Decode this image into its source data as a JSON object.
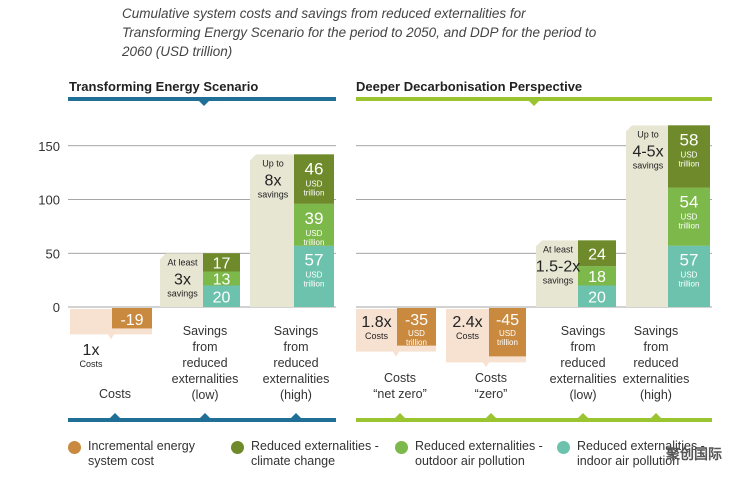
{
  "caption": "Cumulative system costs and savings from reduced externalities for Transforming Energy Scenario for the period to 2050, and DDP for the period to 2060 (USD trillion)",
  "watermark": "聚创国际",
  "colors": {
    "cost": "#c98a3f",
    "climate": "#6e8a2a",
    "outdoor": "#7db84a",
    "indoor": "#6cc2ad",
    "tes_bar": "#1f6f96",
    "ddp_bar": "#9ac430",
    "cost_bg": "#f7e2d2",
    "savings_bg": "#e7e6d3",
    "grid": "#888888"
  },
  "chart_data": {
    "type": "bar",
    "title": "Cumulative system costs and savings from reduced externalities (USD trillion)",
    "ylim": [
      -45,
      160
    ],
    "yticks": [
      0,
      50,
      100,
      150
    ],
    "panels": [
      {
        "name": "Transforming Energy Scenario",
        "color": "tes_bar",
        "groups": [
          {
            "label": [
              "Costs"
            ],
            "kind": "cost",
            "total": -19,
            "multiplier": "1x",
            "mult_sub": "Costs",
            "segments": [
              {
                "series": "cost",
                "value": -19,
                "label": "-19"
              }
            ]
          },
          {
            "label": [
              "Savings",
              "from",
              "reduced",
              "externalities",
              "(low)"
            ],
            "kind": "savings",
            "total": 50,
            "callout": [
              "At least",
              "3x",
              "savings"
            ],
            "segments": [
              {
                "series": "indoor",
                "value": 20,
                "label": "20"
              },
              {
                "series": "outdoor",
                "value": 13,
                "label": "13"
              },
              {
                "series": "climate",
                "value": 17,
                "label": "17"
              }
            ]
          },
          {
            "label": [
              "Savings",
              "from",
              "reduced",
              "externalities",
              "(high)"
            ],
            "kind": "savings",
            "total": 142,
            "callout": [
              "Up to",
              "8x",
              "savings"
            ],
            "segments": [
              {
                "series": "indoor",
                "value": 57,
                "label": "57",
                "unit": [
                  "USD",
                  "trillion"
                ]
              },
              {
                "series": "outdoor",
                "value": 39,
                "label": "39",
                "unit": [
                  "USD",
                  "trillion"
                ]
              },
              {
                "series": "climate",
                "value": 46,
                "label": "46",
                "unit": [
                  "USD",
                  "trillion"
                ]
              }
            ]
          }
        ]
      },
      {
        "name": "Deeper Decarbonisation Perspective",
        "color": "ddp_bar",
        "groups": [
          {
            "label": [
              "Costs",
              "“net zero”"
            ],
            "kind": "cost",
            "total": -35,
            "multiplier": "1.8x",
            "mult_sub": "Costs",
            "segments": [
              {
                "series": "cost",
                "value": -35,
                "label": "-35",
                "unit": [
                  "USD",
                  "trillion"
                ]
              }
            ]
          },
          {
            "label": [
              "Costs",
              "“zero”"
            ],
            "kind": "cost",
            "total": -45,
            "multiplier": "2.4x",
            "mult_sub": "Costs",
            "segments": [
              {
                "series": "cost",
                "value": -45,
                "label": "-45",
                "unit": [
                  "USD",
                  "trillion"
                ]
              }
            ]
          },
          {
            "label": [
              "Savings",
              "from",
              "reduced",
              "externalities",
              "(low)"
            ],
            "kind": "savings",
            "total": 62,
            "callout": [
              "At least",
              "1.5-2x",
              "savings"
            ],
            "segments": [
              {
                "series": "indoor",
                "value": 20,
                "label": "20"
              },
              {
                "series": "outdoor",
                "value": 18,
                "label": "18"
              },
              {
                "series": "climate",
                "value": 24,
                "label": "24"
              }
            ]
          },
          {
            "label": [
              "Savings",
              "from",
              "reduced",
              "externalities",
              "(high)"
            ],
            "kind": "savings",
            "total": 169,
            "callout": [
              "Up to",
              "4-5x",
              "savings"
            ],
            "segments": [
              {
                "series": "indoor",
                "value": 57,
                "label": "57",
                "unit": [
                  "USD",
                  "trillion"
                ]
              },
              {
                "series": "outdoor",
                "value": 54,
                "label": "54",
                "unit": [
                  "USD",
                  "trillion"
                ]
              },
              {
                "series": "climate",
                "value": 58,
                "label": "58",
                "unit": [
                  "USD",
                  "trillion"
                ]
              }
            ]
          }
        ]
      }
    ],
    "legend": [
      {
        "series": "cost",
        "label": [
          "Incremental energy",
          "system cost"
        ]
      },
      {
        "series": "climate",
        "label": [
          "Reduced externalities -",
          "climate change"
        ]
      },
      {
        "series": "outdoor",
        "label": [
          "Reduced externalities -",
          "outdoor air pollution"
        ]
      },
      {
        "series": "indoor",
        "label": [
          "Reduced externalities -",
          "indoor air pollution"
        ]
      }
    ]
  }
}
